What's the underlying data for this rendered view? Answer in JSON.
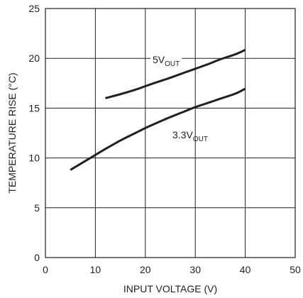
{
  "chart_data": {
    "type": "line",
    "xlabel": "INPUT VOLTAGE (V)",
    "ylabel": "TEMPERATURE RISE (°C)",
    "xlim": [
      0,
      50
    ],
    "ylim": [
      0,
      25
    ],
    "xticks": [
      "0",
      "10",
      "20",
      "30",
      "40",
      "50"
    ],
    "yticks": [
      "0",
      "5",
      "10",
      "15",
      "20",
      "25"
    ],
    "grid": true,
    "series": [
      {
        "label_main": "5V",
        "label_sub": "OUT",
        "x": [
          12,
          15,
          18,
          20,
          22,
          25,
          28,
          30,
          33,
          35,
          38,
          40
        ],
        "y": [
          16.0,
          16.4,
          16.85,
          17.2,
          17.55,
          18.05,
          18.6,
          18.95,
          19.5,
          19.9,
          20.4,
          20.85
        ]
      },
      {
        "label_main": "3.3V",
        "label_sub": "OUT",
        "x": [
          5,
          8,
          10,
          12,
          15,
          18,
          20,
          22,
          25,
          28,
          30,
          33,
          35,
          38,
          40
        ],
        "y": [
          8.8,
          9.7,
          10.3,
          10.9,
          11.75,
          12.5,
          13.0,
          13.45,
          14.1,
          14.7,
          15.1,
          15.6,
          15.95,
          16.45,
          16.95
        ]
      }
    ]
  }
}
